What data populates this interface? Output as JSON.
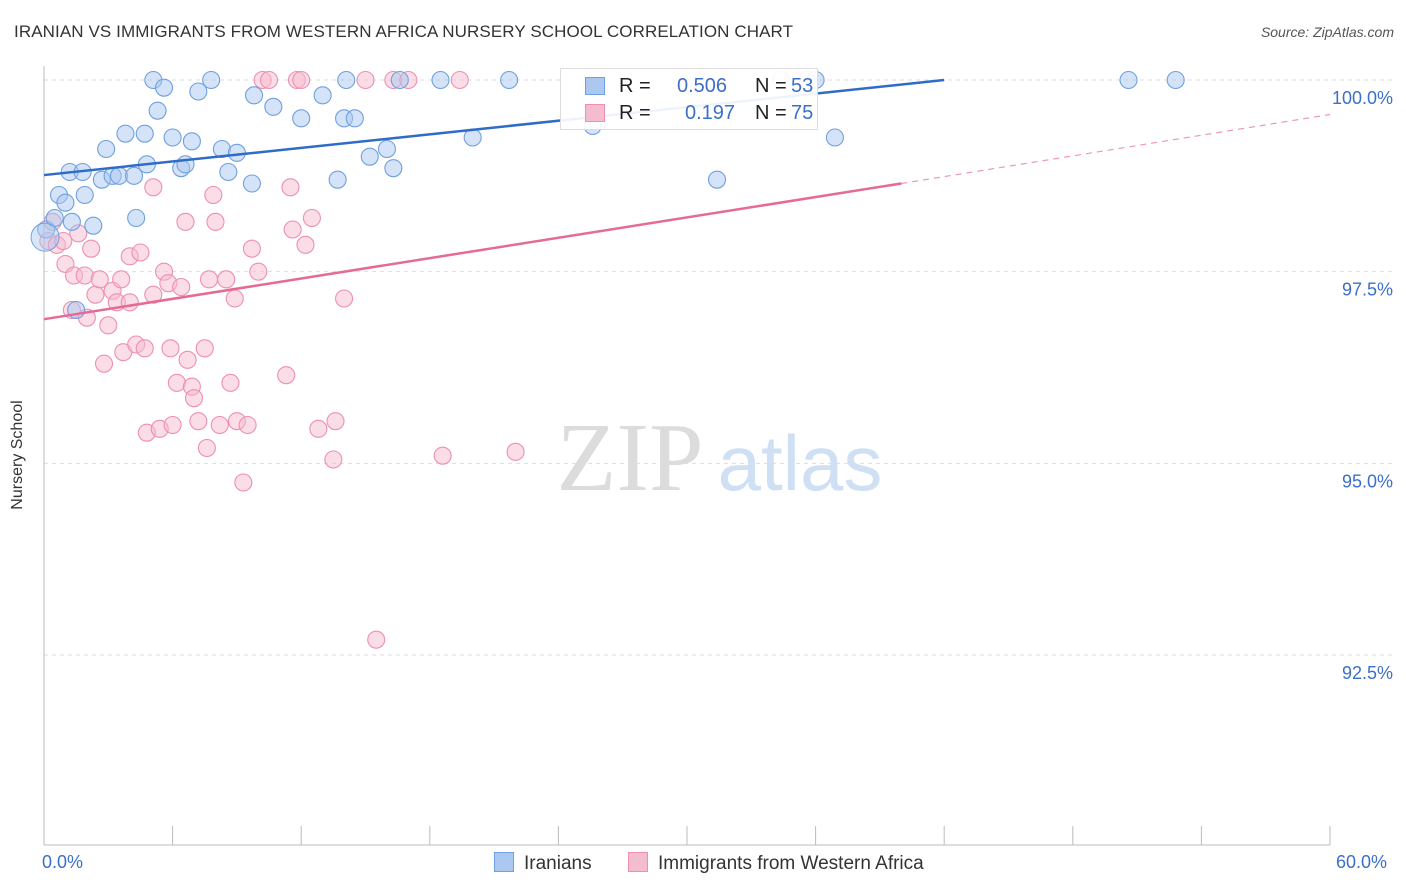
{
  "title": "IRANIAN VS IMMIGRANTS FROM WESTERN AFRICA NURSERY SCHOOL CORRELATION CHART",
  "source": "Source: ZipAtlas.com",
  "watermark": {
    "zip": "ZIP",
    "atlas": "atlas"
  },
  "legend_top": {
    "rows": [
      {
        "r_label": "R =",
        "r_value": "0.506",
        "n_label": "N =",
        "n_value": "53"
      },
      {
        "r_label": "R =",
        "r_value": "0.197",
        "n_label": "N =",
        "n_value": "75"
      }
    ]
  },
  "legend_bottom": [
    "Iranians",
    "Immigrants from Western Africa"
  ],
  "x_tick_labels": {
    "min": "0.0%",
    "max": "60.0%"
  },
  "colors": {
    "blue": "#6fa0e0",
    "blue_fill": "#aac8f0",
    "blue_line": "#2f6cc7",
    "pink": "#ee8fb0",
    "pink_fill": "#f5bcd0",
    "pink_line": "#e56a98",
    "tick_text": "#3b6fc9",
    "grid": "#dddddd"
  },
  "chart_data": {
    "type": "scatter",
    "title": "IRANIAN VS IMMIGRANTS FROM WESTERN AFRICA NURSERY SCHOOL CORRELATION CHART",
    "xlabel": "",
    "ylabel": "Nursery School",
    "xlim": [
      0,
      60
    ],
    "ylim": [
      90.3,
      100.5
    ],
    "y_ticks": [
      {
        "value": 100.0,
        "label": "100.0%"
      },
      {
        "value": 97.5,
        "label": "97.5%"
      },
      {
        "value": 95.0,
        "label": "95.0%"
      },
      {
        "value": 92.5,
        "label": "92.5%"
      }
    ],
    "x_ticks": [
      0,
      6,
      12,
      18,
      24,
      30,
      36,
      42,
      48,
      54,
      60
    ],
    "grid": true,
    "series": [
      {
        "name": "Iranians",
        "R": 0.506,
        "N": 53,
        "trend": {
          "x": [
            0,
            42
          ],
          "y": [
            98.76,
            100.0
          ]
        },
        "points": [
          [
            0.1,
            98.05
          ],
          [
            0.5,
            98.2
          ],
          [
            0.7,
            98.5
          ],
          [
            1.0,
            98.4
          ],
          [
            1.2,
            98.8
          ],
          [
            1.3,
            98.15
          ],
          [
            1.5,
            97.0
          ],
          [
            1.8,
            98.8
          ],
          [
            1.9,
            98.5
          ],
          [
            2.3,
            98.1
          ],
          [
            2.7,
            98.7
          ],
          [
            2.9,
            99.1
          ],
          [
            3.2,
            98.75
          ],
          [
            3.5,
            98.75
          ],
          [
            3.8,
            99.3
          ],
          [
            4.2,
            98.75
          ],
          [
            4.3,
            98.2
          ],
          [
            4.7,
            99.3
          ],
          [
            4.8,
            98.9
          ],
          [
            5.1,
            100.0
          ],
          [
            5.3,
            99.6
          ],
          [
            5.6,
            99.9
          ],
          [
            6.0,
            99.25
          ],
          [
            6.4,
            98.85
          ],
          [
            6.6,
            98.9
          ],
          [
            6.9,
            99.2
          ],
          [
            7.2,
            99.85
          ],
          [
            7.8,
            100.0
          ],
          [
            8.3,
            99.1
          ],
          [
            8.6,
            98.8
          ],
          [
            9.0,
            99.05
          ],
          [
            9.7,
            98.65
          ],
          [
            9.8,
            99.8
          ],
          [
            10.7,
            99.65
          ],
          [
            12.0,
            99.5
          ],
          [
            13.0,
            99.8
          ],
          [
            13.7,
            98.7
          ],
          [
            14.0,
            99.5
          ],
          [
            14.1,
            100.0
          ],
          [
            14.5,
            99.5
          ],
          [
            15.2,
            99.0
          ],
          [
            16.0,
            99.1
          ],
          [
            16.3,
            98.85
          ],
          [
            16.6,
            100.0
          ],
          [
            18.5,
            100.0
          ],
          [
            20.0,
            99.25
          ],
          [
            21.7,
            100.0
          ],
          [
            25.6,
            99.4
          ],
          [
            31.4,
            98.7
          ],
          [
            36.9,
            99.25
          ],
          [
            50.6,
            100.0
          ],
          [
            52.8,
            100.0
          ],
          [
            36.0,
            100.0
          ]
        ]
      },
      {
        "name": "Immigrants from Western Africa",
        "R": 0.197,
        "N": 75,
        "trend": {
          "x": [
            0,
            40
          ],
          "y": [
            96.88,
            98.65
          ]
        },
        "trend_dashed": {
          "x": [
            40,
            60
          ],
          "y": [
            98.65,
            99.55
          ]
        },
        "points": [
          [
            0.2,
            97.9
          ],
          [
            0.4,
            98.15
          ],
          [
            0.6,
            97.85
          ],
          [
            0.9,
            97.9
          ],
          [
            1.0,
            97.6
          ],
          [
            1.3,
            97.0
          ],
          [
            1.4,
            97.45
          ],
          [
            1.6,
            98.0
          ],
          [
            1.9,
            97.45
          ],
          [
            2.0,
            96.9
          ],
          [
            2.2,
            97.8
          ],
          [
            2.4,
            97.2
          ],
          [
            2.6,
            97.4
          ],
          [
            2.8,
            96.3
          ],
          [
            3.0,
            96.8
          ],
          [
            3.2,
            97.25
          ],
          [
            3.4,
            97.1
          ],
          [
            3.6,
            97.4
          ],
          [
            3.7,
            96.45
          ],
          [
            4.0,
            97.1
          ],
          [
            4.0,
            97.7
          ],
          [
            4.3,
            96.55
          ],
          [
            4.5,
            97.75
          ],
          [
            4.7,
            96.5
          ],
          [
            4.8,
            95.4
          ],
          [
            5.1,
            97.2
          ],
          [
            5.1,
            98.6
          ],
          [
            5.4,
            95.45
          ],
          [
            5.6,
            97.5
          ],
          [
            5.8,
            97.35
          ],
          [
            5.9,
            96.5
          ],
          [
            6.0,
            95.5
          ],
          [
            6.2,
            96.05
          ],
          [
            6.4,
            97.3
          ],
          [
            6.6,
            98.15
          ],
          [
            6.7,
            96.35
          ],
          [
            6.9,
            96.0
          ],
          [
            7.0,
            95.85
          ],
          [
            7.2,
            95.55
          ],
          [
            7.5,
            96.5
          ],
          [
            7.6,
            95.2
          ],
          [
            7.7,
            97.4
          ],
          [
            7.9,
            98.5
          ],
          [
            8.0,
            98.15
          ],
          [
            8.2,
            95.5
          ],
          [
            8.5,
            97.4
          ],
          [
            8.7,
            96.05
          ],
          [
            8.9,
            97.15
          ],
          [
            9.0,
            95.55
          ],
          [
            9.3,
            94.75
          ],
          [
            9.5,
            95.5
          ],
          [
            9.7,
            97.8
          ],
          [
            10.0,
            97.5
          ],
          [
            10.2,
            100.0
          ],
          [
            10.5,
            100.0
          ],
          [
            11.3,
            96.15
          ],
          [
            11.5,
            98.6
          ],
          [
            11.6,
            98.05
          ],
          [
            11.8,
            100.0
          ],
          [
            12.0,
            100.0
          ],
          [
            12.2,
            97.85
          ],
          [
            12.5,
            98.2
          ],
          [
            12.8,
            95.45
          ],
          [
            13.5,
            95.05
          ],
          [
            13.6,
            95.55
          ],
          [
            14.0,
            97.15
          ],
          [
            15.0,
            100.0
          ],
          [
            15.5,
            92.7
          ],
          [
            16.3,
            100.0
          ],
          [
            17.0,
            100.0
          ],
          [
            18.6,
            95.1
          ],
          [
            19.4,
            100.0
          ],
          [
            22.0,
            95.15
          ],
          [
            34.4,
            100.0
          ],
          [
            35.6,
            100.0
          ]
        ]
      }
    ]
  }
}
